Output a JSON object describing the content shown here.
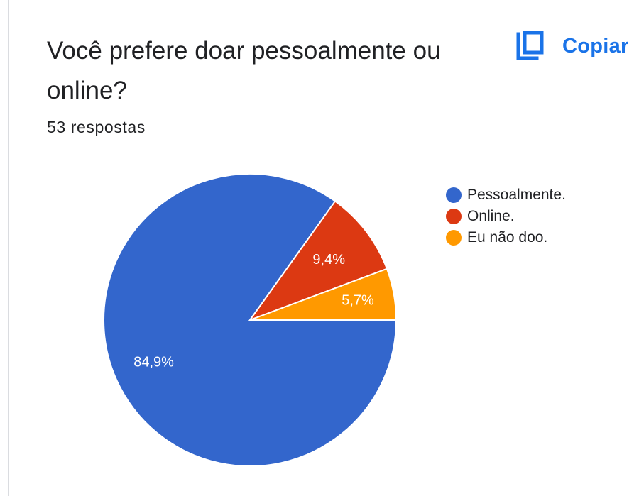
{
  "question": {
    "title": "Você prefere doar pessoalmente ou online?",
    "responses": "53 respostas"
  },
  "copy_button": {
    "label": "Copiar",
    "icon": "copy-icon",
    "color": "#1a73e8"
  },
  "chart_data": {
    "type": "pie",
    "categories": [
      "Pessoalmente.",
      "Online.",
      "Eu não doo."
    ],
    "values": [
      84.9,
      9.4,
      5.7
    ],
    "value_labels": [
      "84,9%",
      "9,4%",
      "5,7%"
    ],
    "colors": [
      "#3366cc",
      "#dc3912",
      "#ff9900"
    ],
    "start": "3 o'clock, counter-clockwise order: Eu não doo., Online., Pessoalmente.",
    "legend_position": "right"
  }
}
